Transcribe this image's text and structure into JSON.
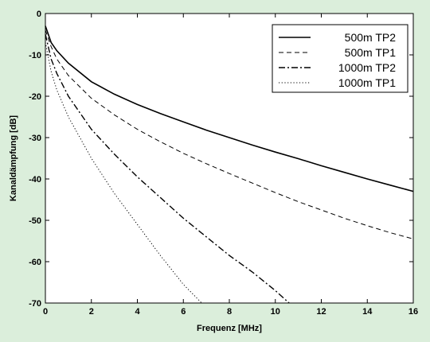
{
  "chart_data": {
    "type": "line",
    "title": "",
    "xlabel": "Frequenz [MHz]",
    "ylabel": "Kanaldämpfung [dB]",
    "xlim": [
      0,
      16
    ],
    "ylim": [
      -70,
      0
    ],
    "xticks": [
      0,
      2,
      4,
      6,
      8,
      10,
      12,
      14,
      16
    ],
    "yticks": [
      0,
      -10,
      -20,
      -30,
      -40,
      -50,
      -60,
      -70
    ],
    "grid": false,
    "legend_position": "top-right",
    "series": [
      {
        "name": "500m TP2",
        "style": "solid",
        "x": [
          0,
          0.25,
          0.5,
          1,
          2,
          3,
          4,
          5,
          6,
          7,
          8,
          9,
          10,
          11,
          12,
          13,
          14,
          15,
          16
        ],
        "y": [
          -3,
          -7,
          -9,
          -12,
          -16.5,
          -19.5,
          -22,
          -24.2,
          -26.2,
          -28.2,
          -30,
          -31.8,
          -33.5,
          -35.1,
          -36.8,
          -38.4,
          -40,
          -41.5,
          -43
        ]
      },
      {
        "name": "500m TP1",
        "style": "dashed",
        "x": [
          0,
          0.25,
          0.5,
          1,
          2,
          3,
          4,
          5,
          6,
          7,
          8,
          9,
          10,
          11,
          12,
          13,
          14,
          15,
          16
        ],
        "y": [
          -4,
          -8,
          -11,
          -15,
          -20.5,
          -24.5,
          -28,
          -31,
          -33.8,
          -36.3,
          -38.7,
          -41,
          -43.3,
          -45.5,
          -47.5,
          -49.5,
          -51.3,
          -53,
          -54.5
        ]
      },
      {
        "name": "1000m TP2",
        "style": "dashdot",
        "x": [
          0,
          0.25,
          0.5,
          1,
          2,
          3,
          4,
          5,
          6,
          7,
          8,
          9,
          10,
          10.6
        ],
        "y": [
          -5,
          -11,
          -14.5,
          -20,
          -28,
          -34,
          -39.5,
          -44.5,
          -49.5,
          -54,
          -58.5,
          -62.5,
          -67,
          -70
        ]
      },
      {
        "name": "1000m TP1",
        "style": "dotted",
        "x": [
          0,
          0.25,
          0.5,
          1,
          2,
          3,
          4,
          5,
          6,
          6.8
        ],
        "y": [
          -7,
          -14,
          -18.5,
          -25,
          -35,
          -43.5,
          -51,
          -58.5,
          -65.5,
          -70
        ]
      }
    ]
  }
}
